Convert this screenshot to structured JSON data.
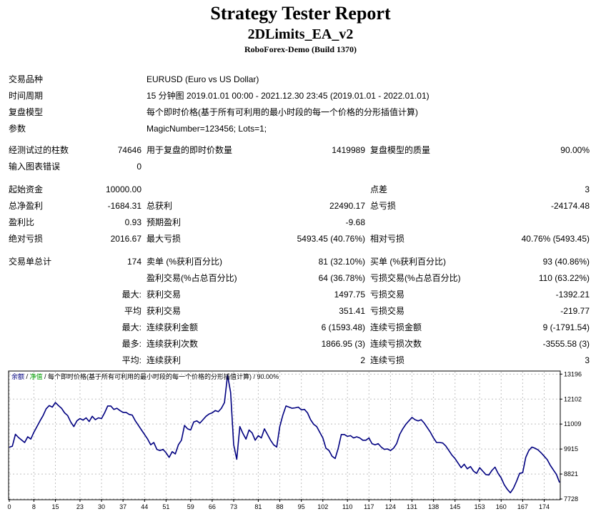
{
  "report": {
    "title": "Strategy Tester Report",
    "expert": "2DLimits_EA_v2",
    "server": "RoboForex-Demo (Build 1370)"
  },
  "info": {
    "symbol_label": "交易品种",
    "symbol_value": "EURUSD (Euro vs US Dollar)",
    "period_label": "时间周期",
    "period_value": "15 分钟图 2019.01.01 00:00 - 2021.12.30 23:45 (2019.01.01 - 2022.01.01)",
    "model_label": "复盘模型",
    "model_value": "每个即时价格(基于所有可利用的最小时段的每一个价格的分形插值计算)",
    "params_label": "参数",
    "params_value": "MagicNumber=123456; Lots=1;"
  },
  "stats": {
    "bars_label": "经测试过的柱数",
    "bars_value": "74646",
    "ticks_label": "用于复盘的即时价数量",
    "ticks_value": "1419989",
    "quality_label": "复盘模型的质量",
    "quality_value": "90.00%",
    "errors_label": "输入图表错误",
    "errors_value": "0",
    "deposit_label": "起始资金",
    "deposit_value": "10000.00",
    "spread_label": "点差",
    "spread_value": "3",
    "net_label": "总净盈利",
    "net_value": "-1684.31",
    "gross_profit_label": "总获利",
    "gross_profit_value": "22490.17",
    "gross_loss_label": "总亏损",
    "gross_loss_value": "-24174.48",
    "pf_label": "盈利比",
    "pf_value": "0.93",
    "payoff_label": "预期盈利",
    "payoff_value": "-9.68",
    "abs_dd_label": "绝对亏损",
    "abs_dd_value": "2016.67",
    "max_dd_label": "最大亏损",
    "max_dd_value": "5493.45 (40.76%)",
    "rel_dd_label": "相对亏损",
    "rel_dd_value": "40.76% (5493.45)",
    "trades_label": "交易单总计",
    "trades_value": "174",
    "short_label": "卖单 (%获利百分比)",
    "short_value": "81 (32.10%)",
    "long_label": "买单 (%获利百分比)",
    "long_value": "93 (40.86%)",
    "win_label": "盈利交易(%占总百分比)",
    "win_value": "64 (36.78%)",
    "lose_label": "亏损交易(%占总百分比)",
    "lose_value": "110 (63.22%)",
    "largest_label": "最大:",
    "largest_win_label": "获利交易",
    "largest_win_value": "1497.75",
    "largest_loss_label": "亏损交易",
    "largest_loss_value": "-1392.21",
    "avg_label": "平均",
    "avg_win_label": "获利交易",
    "avg_win_value": "351.41",
    "avg_loss_label": "亏损交易",
    "avg_loss_value": "-219.77",
    "max_label": "最大:",
    "max_cw_label": "连续获利金额",
    "max_cw_value": "6 (1593.48)",
    "max_cl_label": "连续亏损金额",
    "max_cl_value": "9 (-1791.54)",
    "most_label": "最多:",
    "most_cw_label": "连续获利次数",
    "most_cw_value": "1866.95 (3)",
    "most_cl_label": "连续亏损次数",
    "most_cl_value": "-3555.58 (3)",
    "avgc_label": "平均:",
    "avgc_win_label": "连续获利",
    "avgc_win_value": "2",
    "avgc_loss_label": "连续亏损",
    "avgc_loss_value": "3"
  },
  "chart_legend": {
    "balance": "余额",
    "sep1": " / ",
    "equity": "净值",
    "rest": " / 每个即时价格(基于所有可利用的最小时段的每一个价格的分形插值计算) / 90.00%"
  },
  "colors": {
    "balance_line": "#000080",
    "grid": "#c0c0c0",
    "equity_text": "#00a000"
  },
  "chart_data": {
    "type": "line",
    "series": [
      {
        "name": "余额",
        "values": [
          [
            0,
            9995
          ],
          [
            1,
            10040
          ],
          [
            2,
            10560
          ],
          [
            3,
            10420
          ],
          [
            4,
            10310
          ],
          [
            5,
            10200
          ],
          [
            6,
            10450
          ],
          [
            7,
            10350
          ],
          [
            8,
            10650
          ],
          [
            9,
            10900
          ],
          [
            10,
            11150
          ],
          [
            11,
            11380
          ],
          [
            12,
            11680
          ],
          [
            13,
            11820
          ],
          [
            14,
            11750
          ],
          [
            15,
            11950
          ],
          [
            16,
            11820
          ],
          [
            17,
            11700
          ],
          [
            18,
            11500
          ],
          [
            19,
            11380
          ],
          [
            20,
            11100
          ],
          [
            21,
            10900
          ],
          [
            22,
            11150
          ],
          [
            23,
            11250
          ],
          [
            24,
            11180
          ],
          [
            25,
            11280
          ],
          [
            26,
            11120
          ],
          [
            27,
            11350
          ],
          [
            28,
            11200
          ],
          [
            29,
            11280
          ],
          [
            30,
            11250
          ],
          [
            31,
            11500
          ],
          [
            32,
            11800
          ],
          [
            33,
            11800
          ],
          [
            34,
            11650
          ],
          [
            35,
            11700
          ],
          [
            36,
            11600
          ],
          [
            37,
            11520
          ],
          [
            38,
            11520
          ],
          [
            39,
            11430
          ],
          [
            40,
            11400
          ],
          [
            41,
            11150
          ],
          [
            42,
            10950
          ],
          [
            43,
            10750
          ],
          [
            44,
            10550
          ],
          [
            45,
            10350
          ],
          [
            46,
            10100
          ],
          [
            47,
            10200
          ],
          [
            48,
            9900
          ],
          [
            49,
            9850
          ],
          [
            50,
            9900
          ],
          [
            51,
            9750
          ],
          [
            52,
            9550
          ],
          [
            53,
            9800
          ],
          [
            54,
            9700
          ],
          [
            55,
            10100
          ],
          [
            56,
            10300
          ],
          [
            57,
            10950
          ],
          [
            58,
            10800
          ],
          [
            59,
            10750
          ],
          [
            60,
            11100
          ],
          [
            61,
            11150
          ],
          [
            62,
            11050
          ],
          [
            63,
            11200
          ],
          [
            64,
            11350
          ],
          [
            65,
            11450
          ],
          [
            66,
            11500
          ],
          [
            67,
            11600
          ],
          [
            68,
            11550
          ],
          [
            69,
            11700
          ],
          [
            70,
            11950
          ],
          [
            71,
            13150
          ],
          [
            72,
            12400
          ],
          [
            73,
            10100
          ],
          [
            74,
            9470
          ],
          [
            75,
            10900
          ],
          [
            76,
            10600
          ],
          [
            77,
            10350
          ],
          [
            78,
            10750
          ],
          [
            79,
            10620
          ],
          [
            80,
            10300
          ],
          [
            81,
            10500
          ],
          [
            82,
            10400
          ],
          [
            83,
            10800
          ],
          [
            84,
            10550
          ],
          [
            85,
            10300
          ],
          [
            86,
            10100
          ],
          [
            87,
            10000
          ],
          [
            88,
            10900
          ],
          [
            89,
            11400
          ],
          [
            90,
            11800
          ],
          [
            91,
            11750
          ],
          [
            92,
            11700
          ],
          [
            93,
            11720
          ],
          [
            94,
            11750
          ],
          [
            95,
            11630
          ],
          [
            96,
            11650
          ],
          [
            97,
            11500
          ],
          [
            98,
            11200
          ],
          [
            99,
            11000
          ],
          [
            100,
            10900
          ],
          [
            101,
            10650
          ],
          [
            102,
            10400
          ],
          [
            103,
            9950
          ],
          [
            104,
            9850
          ],
          [
            105,
            9600
          ],
          [
            106,
            9500
          ],
          [
            107,
            9950
          ],
          [
            108,
            10550
          ],
          [
            109,
            10550
          ],
          [
            110,
            10470
          ],
          [
            111,
            10500
          ],
          [
            112,
            10400
          ],
          [
            113,
            10450
          ],
          [
            114,
            10400
          ],
          [
            115,
            10300
          ],
          [
            116,
            10300
          ],
          [
            117,
            10400
          ],
          [
            118,
            10150
          ],
          [
            119,
            10100
          ],
          [
            120,
            10150
          ],
          [
            121,
            10000
          ],
          [
            122,
            9900
          ],
          [
            123,
            9920
          ],
          [
            124,
            9850
          ],
          [
            125,
            9950
          ],
          [
            126,
            10150
          ],
          [
            127,
            10550
          ],
          [
            128,
            10800
          ],
          [
            129,
            11000
          ],
          [
            130,
            11150
          ],
          [
            131,
            11300
          ],
          [
            132,
            11200
          ],
          [
            133,
            11150
          ],
          [
            134,
            11200
          ],
          [
            135,
            11050
          ],
          [
            136,
            10850
          ],
          [
            137,
            10650
          ],
          [
            138,
            10400
          ],
          [
            139,
            10200
          ],
          [
            140,
            10200
          ],
          [
            141,
            10180
          ],
          [
            142,
            10050
          ],
          [
            143,
            9850
          ],
          [
            144,
            9650
          ],
          [
            145,
            9500
          ],
          [
            146,
            9300
          ],
          [
            147,
            9100
          ],
          [
            148,
            9250
          ],
          [
            149,
            9050
          ],
          [
            150,
            9150
          ],
          [
            151,
            8950
          ],
          [
            152,
            8850
          ],
          [
            153,
            9100
          ],
          [
            154,
            8950
          ],
          [
            155,
            8800
          ],
          [
            156,
            8780
          ],
          [
            157,
            8980
          ],
          [
            158,
            9120
          ],
          [
            159,
            8850
          ],
          [
            160,
            8650
          ],
          [
            161,
            8350
          ],
          [
            162,
            8150
          ],
          [
            163,
            8000
          ],
          [
            164,
            8200
          ],
          [
            165,
            8500
          ],
          [
            166,
            8850
          ],
          [
            167,
            8880
          ],
          [
            168,
            9550
          ],
          [
            169,
            9850
          ],
          [
            170,
            10000
          ],
          [
            171,
            9950
          ],
          [
            172,
            9880
          ],
          [
            173,
            9750
          ],
          [
            174,
            9600
          ],
          [
            175,
            9450
          ],
          [
            176,
            9200
          ],
          [
            177,
            9000
          ],
          [
            178,
            8800
          ],
          [
            179,
            8450
          ]
        ]
      }
    ],
    "x_ticks": [
      0,
      8,
      15,
      23,
      30,
      37,
      44,
      51,
      59,
      66,
      73,
      81,
      88,
      95,
      102,
      110,
      117,
      124,
      131,
      138,
      145,
      153,
      160,
      167,
      174
    ],
    "y_ticks": [
      7728,
      8821,
      9915,
      11009,
      12102,
      13196
    ],
    "xlim": [
      0,
      179
    ],
    "ylim": [
      7728,
      13300
    ],
    "grid": true,
    "legend": "top-left"
  }
}
